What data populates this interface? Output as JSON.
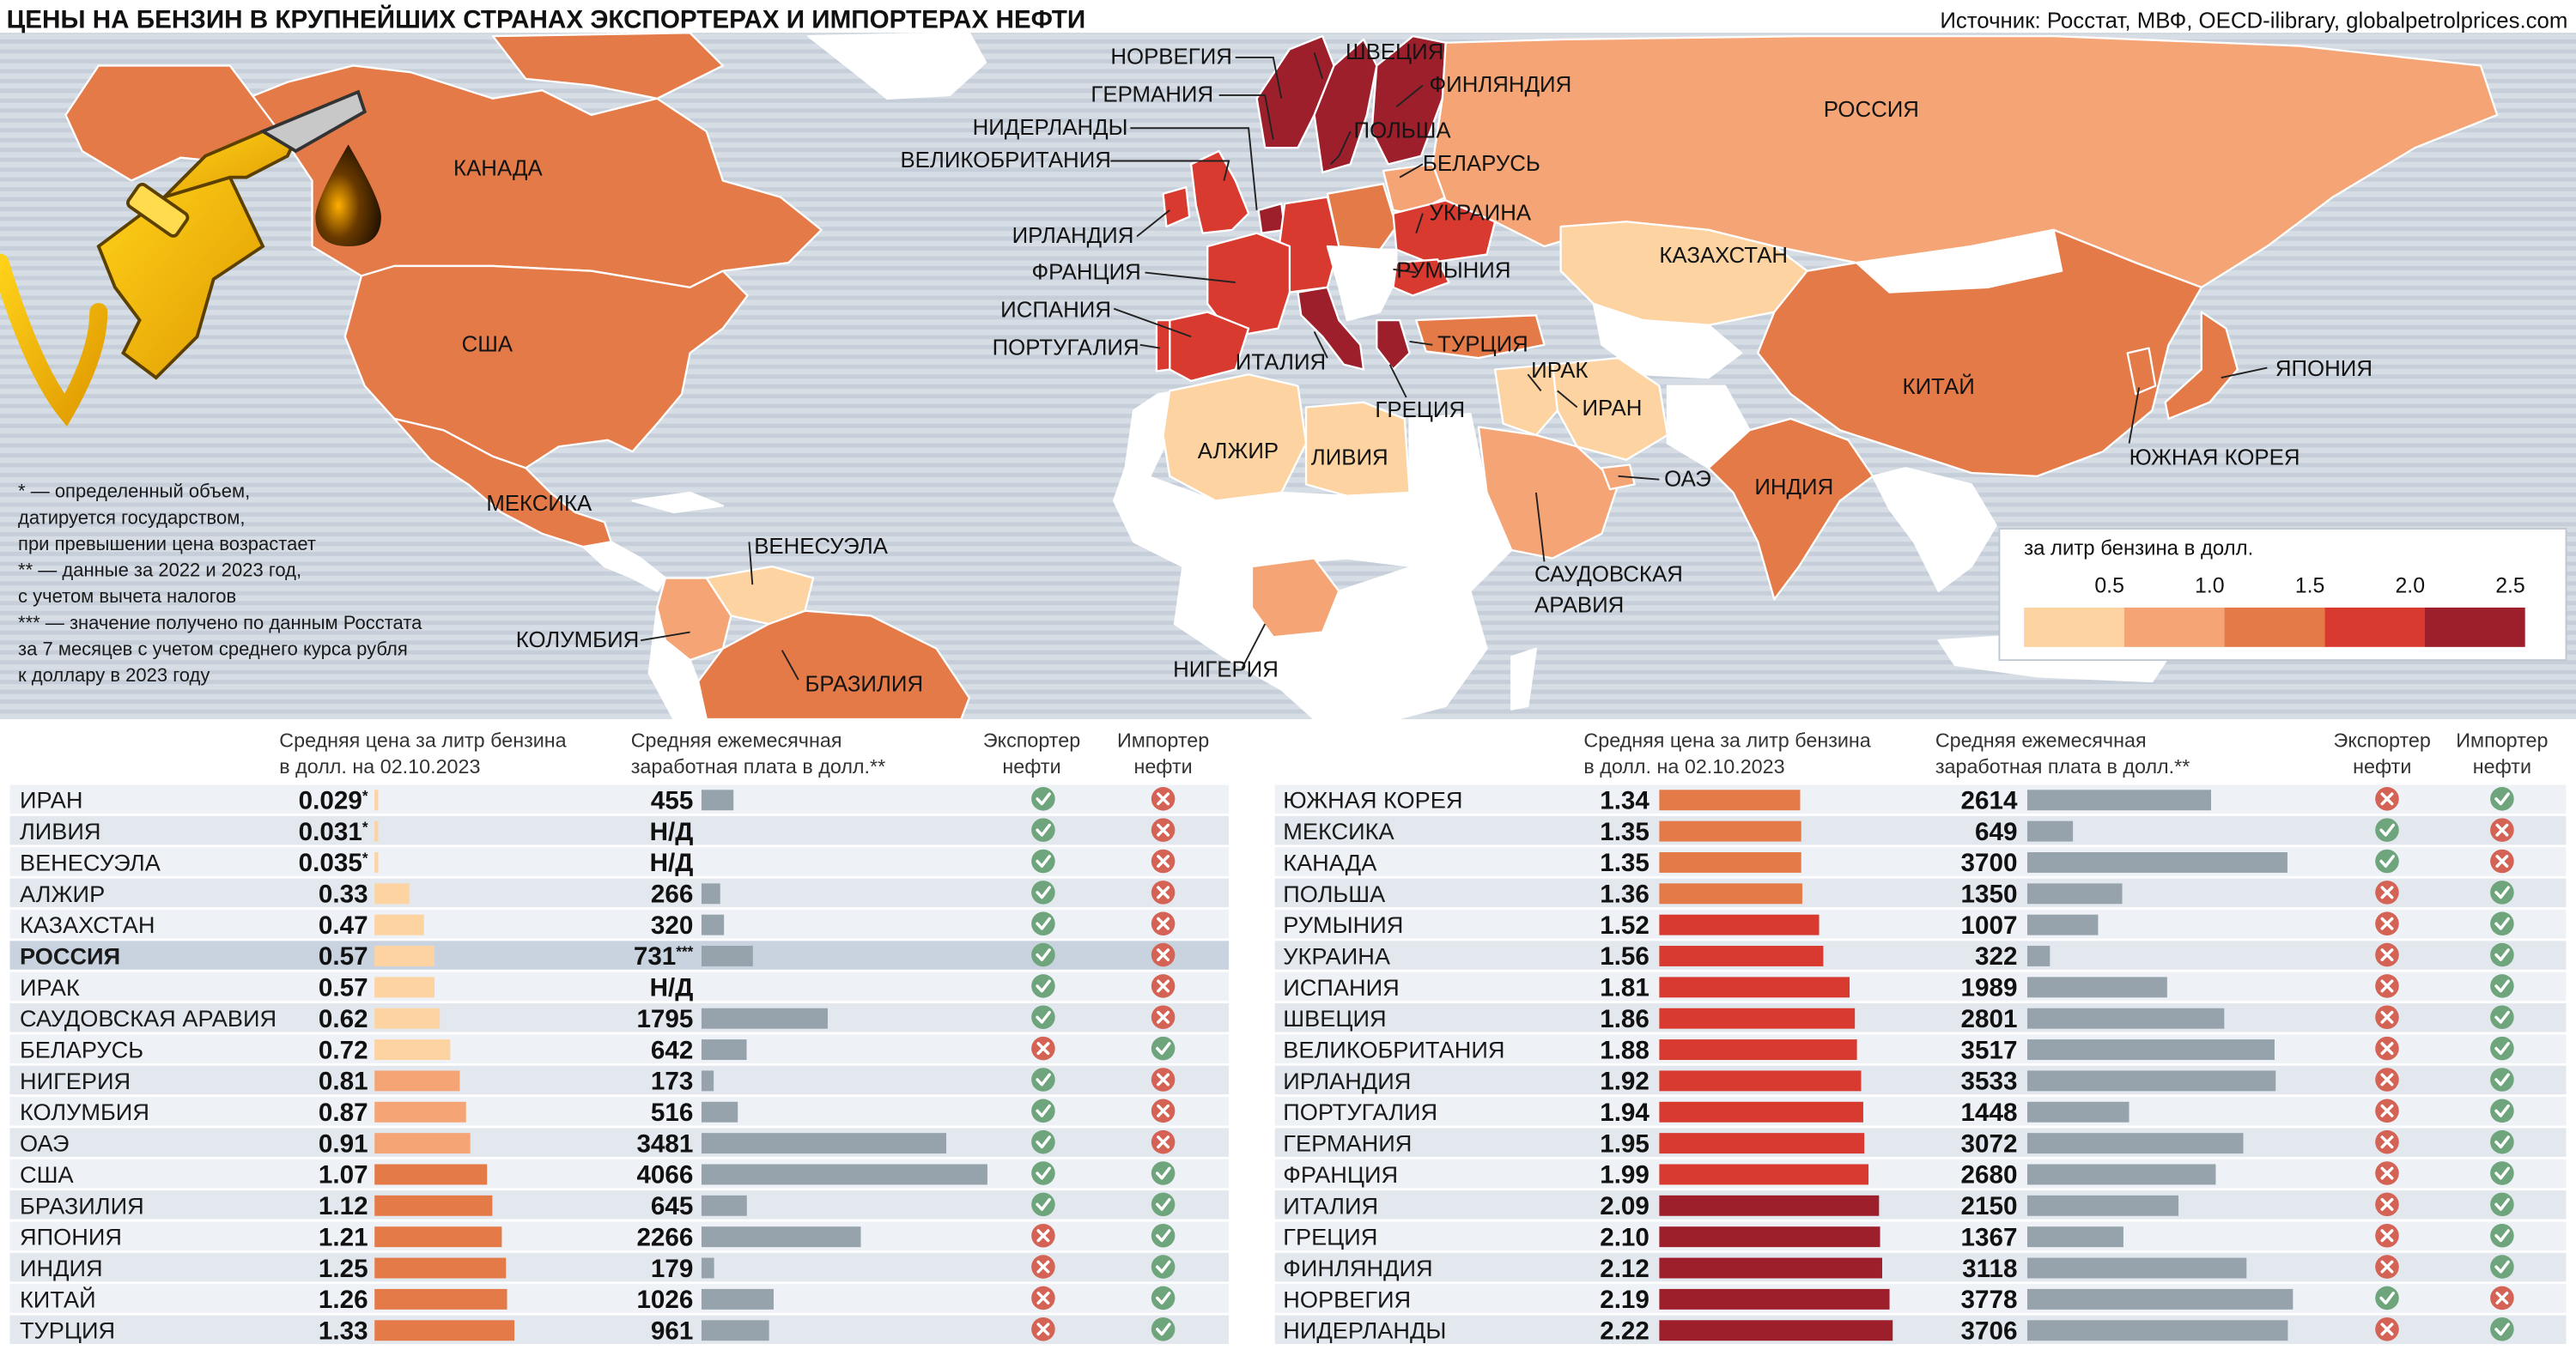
{
  "title": "ЦЕНЫ НА БЕНЗИН В КРУПНЕЙШИХ СТРАНАХ ЭКСПОРТЕРАХ И ИМПОРТЕРАХ НЕФТИ",
  "source": "Источник: Росстат, МВФ, OECD-ilibrary, globalpetrolprices.com",
  "footnotes": [
    "* — определенный объем,",
    "датируется государством,",
    "при превышении цена возрастает",
    "** — данные за 2022 и 2023 год,",
    "с учетом вычета налогов",
    "*** — значение получено по данным Росстата",
    "за 7 месяцев с учетом среднего курса рубля",
    "к доллару в 2023 году"
  ],
  "legend": {
    "title": "за литр бензина в долл.",
    "ticks": [
      "0.5",
      "1.0",
      "1.5",
      "2.0",
      "2.5"
    ],
    "colors": [
      "#fdd3a1",
      "#f5a575",
      "#e47a48",
      "#d83a30",
      "#9e1f2c"
    ]
  },
  "map_labels": {
    "norway": "НОРВЕГИЯ",
    "sweden": "ШВЕЦИЯ",
    "finland": "ФИНЛЯНДИЯ",
    "germany": "ГЕРМАНИЯ",
    "poland": "ПОЛЬША",
    "netherlands": "НИДЕРЛАНДЫ",
    "uk": "ВЕЛИКОБРИТАНИЯ",
    "belarus": "БЕЛАРУСЬ",
    "ireland": "ИРЛАНДИЯ",
    "ukraine": "УКРАИНА",
    "france": "ФРАНЦИЯ",
    "romania": "РУМЫНИЯ",
    "spain": "ИСПАНИЯ",
    "portugal": "ПОРТУГАЛИЯ",
    "italy": "ИТАЛИЯ",
    "turkey": "ТУРЦИЯ",
    "greece": "ГРЕЦИЯ",
    "iraq": "ИРАК",
    "iran": "ИРАН",
    "russia": "РОССИЯ",
    "kazakhstan": "КАЗАХСТАН",
    "china": "КИТАЙ",
    "japan": "ЯПОНИЯ",
    "south_korea": "ЮЖНАЯ КОРЕЯ",
    "india": "ИНДИЯ",
    "uae": "ОАЭ",
    "saudi1": "САУДОВСКАЯ",
    "saudi2": "АРАВИЯ",
    "algeria": "АЛЖИР",
    "libya": "ЛИВИЯ",
    "nigeria": "НИГЕРИЯ",
    "canada": "КАНАДА",
    "usa": "США",
    "mexico": "МЕКСИКА",
    "venezuela": "ВЕНЕСУЭЛА",
    "colombia": "КОЛУМБИЯ",
    "brazil": "БРАЗИЛИЯ"
  },
  "table_headers": {
    "price_1": "Средняя цена за литр бензина",
    "price_2": "в долл. на 02.10.2023",
    "salary_1": "Средняя ежемесячная",
    "salary_2": "заработная плата в долл.**",
    "exporter_1": "Экспортер",
    "exporter_2": "нефти",
    "importer_1": "Импортер",
    "importer_2": "нефти"
  },
  "chart_data": {
    "type": "table",
    "title": "ЦЕНЫ НА БЕНЗИН В КРУПНЕЙШИХ СТРАНАХ ЭКСПОРТЕРАХ И ИМПОРТЕРАХ НЕФТИ",
    "price_unit": "долл. за литр",
    "salary_unit": "долл. в месяц",
    "rows": [
      {
        "country": "ИРАН",
        "price": 0.029,
        "price_label": "0.029",
        "mark": "*",
        "salary": 455,
        "salary_label": "455",
        "exporter": true,
        "importer": false
      },
      {
        "country": "ЛИВИЯ",
        "price": 0.031,
        "price_label": "0.031",
        "mark": "*",
        "salary": null,
        "salary_label": "Н/Д",
        "exporter": true,
        "importer": false
      },
      {
        "country": "ВЕНЕСУЭЛА",
        "price": 0.035,
        "price_label": "0.035",
        "mark": "*",
        "salary": null,
        "salary_label": "Н/Д",
        "exporter": true,
        "importer": false
      },
      {
        "country": "АЛЖИР",
        "price": 0.33,
        "price_label": "0.33",
        "mark": "",
        "salary": 266,
        "salary_label": "266",
        "exporter": true,
        "importer": false
      },
      {
        "country": "КАЗАХСТАН",
        "price": 0.47,
        "price_label": "0.47",
        "mark": "",
        "salary": 320,
        "salary_label": "320",
        "exporter": true,
        "importer": false
      },
      {
        "country": "РОССИЯ",
        "price": 0.57,
        "price_label": "0.57",
        "mark": "",
        "salary": 731,
        "salary_label": "731",
        "salary_mark": "***",
        "exporter": true,
        "importer": false,
        "highlight": true
      },
      {
        "country": "ИРАК",
        "price": 0.57,
        "price_label": "0.57",
        "mark": "",
        "salary": null,
        "salary_label": "Н/Д",
        "exporter": true,
        "importer": false
      },
      {
        "country": "САУДОВСКАЯ АРАВИЯ",
        "price": 0.62,
        "price_label": "0.62",
        "mark": "",
        "salary": 1795,
        "salary_label": "1795",
        "exporter": true,
        "importer": false
      },
      {
        "country": "БЕЛАРУСЬ",
        "price": 0.72,
        "price_label": "0.72",
        "mark": "",
        "salary": 642,
        "salary_label": "642",
        "exporter": false,
        "importer": true
      },
      {
        "country": "НИГЕРИЯ",
        "price": 0.81,
        "price_label": "0.81",
        "mark": "",
        "salary": 173,
        "salary_label": "173",
        "exporter": true,
        "importer": false
      },
      {
        "country": "КОЛУМБИЯ",
        "price": 0.87,
        "price_label": "0.87",
        "mark": "",
        "salary": 516,
        "salary_label": "516",
        "exporter": true,
        "importer": false
      },
      {
        "country": "ОАЭ",
        "price": 0.91,
        "price_label": "0.91",
        "mark": "",
        "salary": 3481,
        "salary_label": "3481",
        "exporter": true,
        "importer": false
      },
      {
        "country": "США",
        "price": 1.07,
        "price_label": "1.07",
        "mark": "",
        "salary": 4066,
        "salary_label": "4066",
        "exporter": true,
        "importer": true
      },
      {
        "country": "БРАЗИЛИЯ",
        "price": 1.12,
        "price_label": "1.12",
        "mark": "",
        "salary": 645,
        "salary_label": "645",
        "exporter": true,
        "importer": true
      },
      {
        "country": "ЯПОНИЯ",
        "price": 1.21,
        "price_label": "1.21",
        "mark": "",
        "salary": 2266,
        "salary_label": "2266",
        "exporter": false,
        "importer": true
      },
      {
        "country": "ИНДИЯ",
        "price": 1.25,
        "price_label": "1.25",
        "mark": "",
        "salary": 179,
        "salary_label": "179",
        "exporter": false,
        "importer": true
      },
      {
        "country": "КИТАЙ",
        "price": 1.26,
        "price_label": "1.26",
        "mark": "",
        "salary": 1026,
        "salary_label": "1026",
        "exporter": false,
        "importer": true
      },
      {
        "country": "ТУРЦИЯ",
        "price": 1.33,
        "price_label": "1.33",
        "mark": "",
        "salary": 961,
        "salary_label": "961",
        "exporter": false,
        "importer": true
      },
      {
        "country": "ЮЖНАЯ КОРЕЯ",
        "price": 1.34,
        "price_label": "1.34",
        "mark": "",
        "salary": 2614,
        "salary_label": "2614",
        "exporter": false,
        "importer": true
      },
      {
        "country": "МЕКСИКА",
        "price": 1.35,
        "price_label": "1.35",
        "mark": "",
        "salary": 649,
        "salary_label": "649",
        "exporter": true,
        "importer": false
      },
      {
        "country": "КАНАДА",
        "price": 1.35,
        "price_label": "1.35",
        "mark": "",
        "salary": 3700,
        "salary_label": "3700",
        "exporter": true,
        "importer": false
      },
      {
        "country": "ПОЛЬША",
        "price": 1.36,
        "price_label": "1.36",
        "mark": "",
        "salary": 1350,
        "salary_label": "1350",
        "exporter": false,
        "importer": true
      },
      {
        "country": "РУМЫНИЯ",
        "price": 1.52,
        "price_label": "1.52",
        "mark": "",
        "salary": 1007,
        "salary_label": "1007",
        "exporter": false,
        "importer": true
      },
      {
        "country": "УКРАИНА",
        "price": 1.56,
        "price_label": "1.56",
        "mark": "",
        "salary": 322,
        "salary_label": "322",
        "exporter": false,
        "importer": true
      },
      {
        "country": "ИСПАНИЯ",
        "price": 1.81,
        "price_label": "1.81",
        "mark": "",
        "salary": 1989,
        "salary_label": "1989",
        "exporter": false,
        "importer": true
      },
      {
        "country": "ШВЕЦИЯ",
        "price": 1.86,
        "price_label": "1.86",
        "mark": "",
        "salary": 2801,
        "salary_label": "2801",
        "exporter": false,
        "importer": true
      },
      {
        "country": "ВЕЛИКОБРИТАНИЯ",
        "price": 1.88,
        "price_label": "1.88",
        "mark": "",
        "salary": 3517,
        "salary_label": "3517",
        "exporter": false,
        "importer": true
      },
      {
        "country": "ИРЛАНДИЯ",
        "price": 1.92,
        "price_label": "1.92",
        "mark": "",
        "salary": 3533,
        "salary_label": "3533",
        "exporter": false,
        "importer": true
      },
      {
        "country": "ПОРТУГАЛИЯ",
        "price": 1.94,
        "price_label": "1.94",
        "mark": "",
        "salary": 1448,
        "salary_label": "1448",
        "exporter": false,
        "importer": true
      },
      {
        "country": "ГЕРМАНИЯ",
        "price": 1.95,
        "price_label": "1.95",
        "mark": "",
        "salary": 3072,
        "salary_label": "3072",
        "exporter": false,
        "importer": true
      },
      {
        "country": "ФРАНЦИЯ",
        "price": 1.99,
        "price_label": "1.99",
        "mark": "",
        "salary": 2680,
        "salary_label": "2680",
        "exporter": false,
        "importer": true
      },
      {
        "country": "ИТАЛИЯ",
        "price": 2.09,
        "price_label": "2.09",
        "mark": "",
        "salary": 2150,
        "salary_label": "2150",
        "exporter": false,
        "importer": true
      },
      {
        "country": "ГРЕЦИЯ",
        "price": 2.1,
        "price_label": "2.10",
        "mark": "",
        "salary": 1367,
        "salary_label": "1367",
        "exporter": false,
        "importer": true
      },
      {
        "country": "ФИНЛЯНДИЯ",
        "price": 2.12,
        "price_label": "2.12",
        "mark": "",
        "salary": 3118,
        "salary_label": "3118",
        "exporter": false,
        "importer": true
      },
      {
        "country": "НОРВЕГИЯ",
        "price": 2.19,
        "price_label": "2.19",
        "mark": "",
        "salary": 3778,
        "salary_label": "3778",
        "exporter": true,
        "importer": false
      },
      {
        "country": "НИДЕРЛАНДЫ",
        "price": 2.22,
        "price_label": "2.22",
        "mark": "",
        "salary": 3706,
        "salary_label": "3706",
        "exporter": false,
        "importer": true
      }
    ]
  }
}
